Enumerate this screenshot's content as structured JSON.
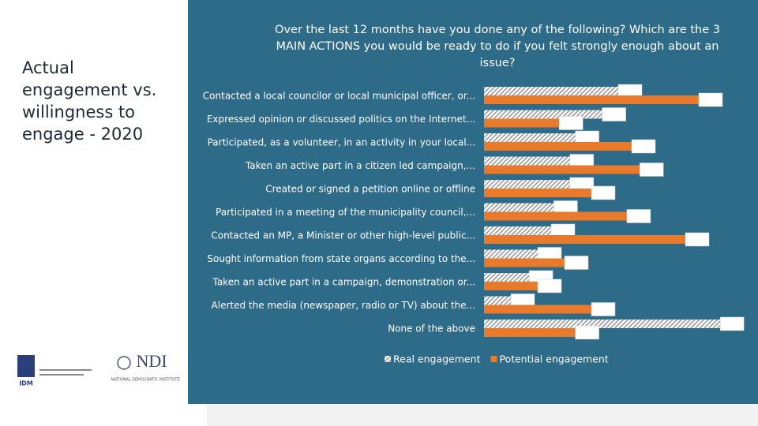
{
  "slide_title": "Actual engagement vs. willingness to engage - 2020",
  "logos": {
    "idm": "IDM",
    "ndi": "NDI",
    "ndi_sub": "NATIONAL DEMOCRATIC INSTITUTE"
  },
  "chart_data": {
    "type": "bar",
    "orientation": "horizontal",
    "title": "Over the last 12 months have you done any of the following? Which are the 3 MAIN ACTIONS you would be ready to do if you felt strongly enough about an issue?",
    "categories": [
      "Contacted a local councilor or local municipal officer, or...",
      "Expressed opinion or discussed politics on the Internet...",
      "Participated, as a volunteer, in an activity in your local...",
      "Taken an active part in a citizen led campaign,...",
      "Created or signed a petition online or offline",
      "Participated in a meeting of the municipality council,...",
      "Contacted an MP, a Minister or other high-level public...",
      "Sought information from state organs according to the...",
      "Taken an active part in a campaign, demonstration or...",
      "Alerted the media (newspaper, radio or TV) about the...",
      "None of the above"
    ],
    "series": [
      {
        "name": "Real engagement",
        "color": "#ffffff",
        "pattern": "hatched",
        "values": [
          25,
          22,
          17,
          16,
          16,
          13,
          12.5,
          10,
          8.4,
          5,
          44
        ]
      },
      {
        "name": "Potential engagement",
        "color": "#e97a2c",
        "values": [
          40,
          14,
          27.5,
          29,
          20,
          26.6,
          37.5,
          15,
          10,
          20,
          17
        ]
      }
    ],
    "xlim": [
      0,
      50
    ],
    "legend": "bottom"
  }
}
